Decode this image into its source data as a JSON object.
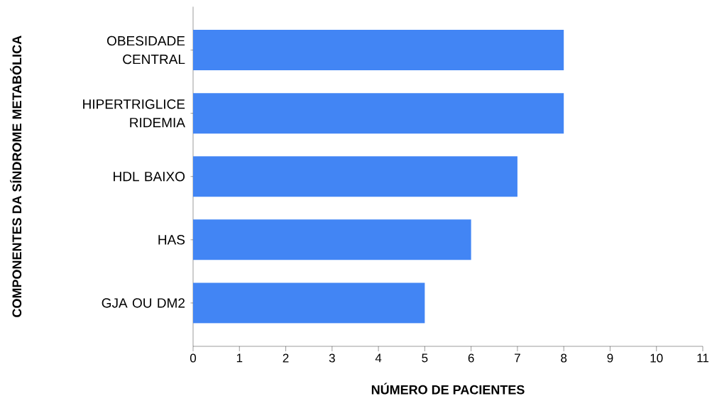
{
  "chart_data": {
    "type": "bar",
    "orientation": "horizontal",
    "categories": [
      "OBESIDADE CENTRAL",
      "HIPERTRIGLICE RIDEMIA",
      "HDL BAIXO",
      "HAS",
      "GJA OU DM2"
    ],
    "values": [
      8,
      8,
      7,
      6,
      5
    ],
    "color": "#4285f4",
    "xlabel": "NÚMERO DE PACIENTES",
    "ylabel": "COMPONENTES DA SÍNDROME METABÓLICA",
    "xlim": [
      0,
      11
    ],
    "xticks": [
      0,
      1,
      2,
      3,
      4,
      5,
      6,
      7,
      8,
      9,
      10,
      11
    ]
  }
}
